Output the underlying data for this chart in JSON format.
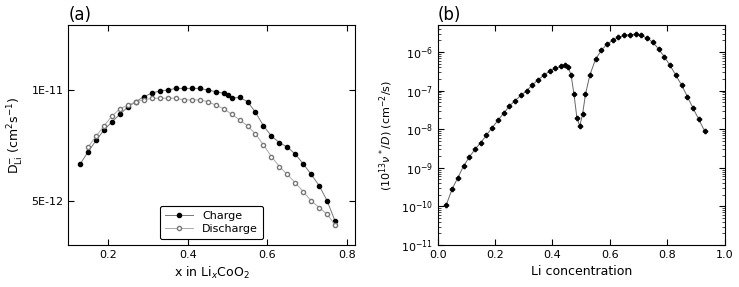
{
  "panel_a": {
    "label": "(a)",
    "xlabel": "x in Li$_x$CoO$_2$",
    "ylabel": "D$_{\\rm Li}^{-}$ (cm$^2$s$^{-1}$)",
    "xlim": [
      0.1,
      0.82
    ],
    "ylim_log": [
      3.8e-12,
      1.5e-11
    ],
    "yticks": [
      5e-12,
      1e-11
    ],
    "ytick_labels": [
      "5E-12",
      "1E-11"
    ],
    "xticks": [
      0.2,
      0.4,
      0.6,
      0.8
    ],
    "charge_x": [
      0.13,
      0.15,
      0.17,
      0.19,
      0.21,
      0.23,
      0.25,
      0.27,
      0.29,
      0.31,
      0.33,
      0.35,
      0.37,
      0.39,
      0.41,
      0.43,
      0.45,
      0.47,
      0.49,
      0.5,
      0.51,
      0.53,
      0.55,
      0.57,
      0.59,
      0.61,
      0.63,
      0.65,
      0.67,
      0.69,
      0.71,
      0.73,
      0.75,
      0.77
    ],
    "charge_y": [
      6.3e-12,
      6.8e-12,
      7.3e-12,
      7.8e-12,
      8.2e-12,
      8.6e-12,
      9e-12,
      9.3e-12,
      9.6e-12,
      9.8e-12,
      9.95e-12,
      1e-11,
      1.01e-11,
      1.01e-11,
      1.01e-11,
      1.01e-11,
      1e-11,
      9.9e-12,
      9.8e-12,
      9.7e-12,
      9.5e-12,
      9.55e-12,
      9.3e-12,
      8.7e-12,
      8e-12,
      7.5e-12,
      7.2e-12,
      7e-12,
      6.7e-12,
      6.3e-12,
      5.9e-12,
      5.5e-12,
      5e-12,
      4.4e-12
    ],
    "discharge_x": [
      0.15,
      0.17,
      0.19,
      0.21,
      0.23,
      0.25,
      0.27,
      0.29,
      0.31,
      0.33,
      0.35,
      0.37,
      0.39,
      0.41,
      0.43,
      0.45,
      0.47,
      0.49,
      0.51,
      0.53,
      0.55,
      0.57,
      0.59,
      0.61,
      0.63,
      0.65,
      0.67,
      0.69,
      0.71,
      0.73,
      0.75,
      0.77
    ],
    "discharge_y": [
      7e-12,
      7.5e-12,
      8e-12,
      8.5e-12,
      8.9e-12,
      9.1e-12,
      9.3e-12,
      9.4e-12,
      9.5e-12,
      9.5e-12,
      9.5e-12,
      9.5e-12,
      9.4e-12,
      9.4e-12,
      9.4e-12,
      9.3e-12,
      9.1e-12,
      8.9e-12,
      8.6e-12,
      8.3e-12,
      8e-12,
      7.6e-12,
      7.1e-12,
      6.6e-12,
      6.2e-12,
      5.9e-12,
      5.6e-12,
      5.3e-12,
      5e-12,
      4.8e-12,
      4.6e-12,
      4.3e-12
    ]
  },
  "panel_b": {
    "label": "(b)",
    "xlabel": "Li concentration",
    "xlim": [
      0.0,
      1.0
    ],
    "ylim_log": [
      1e-11,
      5e-06
    ],
    "yticks": [
      1e-11,
      1e-10,
      1e-09,
      1e-08,
      1e-07,
      1e-06
    ],
    "xticks": [
      0.0,
      0.2,
      0.4,
      0.6,
      0.8,
      1.0
    ],
    "data_x": [
      0.03,
      0.05,
      0.07,
      0.09,
      0.11,
      0.13,
      0.15,
      0.17,
      0.19,
      0.21,
      0.23,
      0.25,
      0.27,
      0.29,
      0.31,
      0.33,
      0.35,
      0.37,
      0.39,
      0.41,
      0.43,
      0.445,
      0.455,
      0.465,
      0.475,
      0.485,
      0.495,
      0.505,
      0.515,
      0.53,
      0.55,
      0.57,
      0.59,
      0.61,
      0.63,
      0.65,
      0.67,
      0.69,
      0.71,
      0.73,
      0.75,
      0.77,
      0.79,
      0.81,
      0.83,
      0.85,
      0.87,
      0.89,
      0.91,
      0.93
    ],
    "data_y": [
      1.1e-10,
      2.8e-10,
      5.5e-10,
      1.1e-09,
      1.9e-09,
      3e-09,
      4.5e-09,
      7e-09,
      1.1e-08,
      1.7e-08,
      2.6e-08,
      4e-08,
      5.5e-08,
      7.5e-08,
      1e-07,
      1.4e-07,
      1.9e-07,
      2.5e-07,
      3.2e-07,
      3.8e-07,
      4.3e-07,
      4.5e-07,
      4e-07,
      2.5e-07,
      8e-08,
      2e-08,
      1.2e-08,
      2.5e-08,
      8e-08,
      2.5e-07,
      6.5e-07,
      1.1e-06,
      1.6e-06,
      2e-06,
      2.4e-06,
      2.7e-06,
      2.85e-06,
      2.9e-06,
      2.7e-06,
      2.3e-06,
      1.8e-06,
      1.2e-06,
      7.5e-07,
      4.5e-07,
      2.5e-07,
      1.4e-07,
      7e-08,
      3.5e-08,
      1.8e-08,
      9e-09
    ]
  }
}
